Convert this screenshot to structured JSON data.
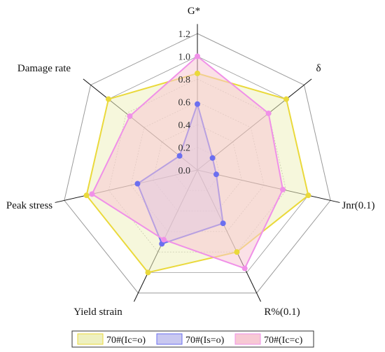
{
  "chart_data": {
    "type": "radar",
    "axes": [
      "G*",
      "δ",
      "Jnr(0.1)",
      "R%(0.1)",
      "Yield strain",
      "Peak stress",
      "Damage rate"
    ],
    "ticks": [
      "0.0",
      "0.2",
      "0.4",
      "0.6",
      "0.8",
      "1.0",
      "1.2"
    ],
    "range": [
      0,
      1.2
    ],
    "grid": true,
    "legend_position": "bottom",
    "series": [
      {
        "name": "70#(Ic=o)",
        "stroke": "#ead93b",
        "fill": "#eef0c0",
        "point": "#ead93b",
        "values": [
          0.85,
          1.0,
          1.0,
          0.8,
          1.0,
          1.0,
          1.0
        ]
      },
      {
        "name": "70#(Is=o)",
        "stroke": "#6b6ff0",
        "fill": "#c9c8f0",
        "point": "#6b6ff0",
        "values": [
          0.58,
          0.17,
          0.17,
          0.52,
          0.72,
          0.54,
          0.2
        ]
      },
      {
        "name": "70#(Ic=c)",
        "stroke": "#f090e8",
        "fill": "#f7c9d4",
        "point": "#f090e8",
        "values": [
          1.0,
          0.8,
          0.77,
          0.96,
          0.68,
          0.95,
          0.76
        ]
      }
    ]
  }
}
